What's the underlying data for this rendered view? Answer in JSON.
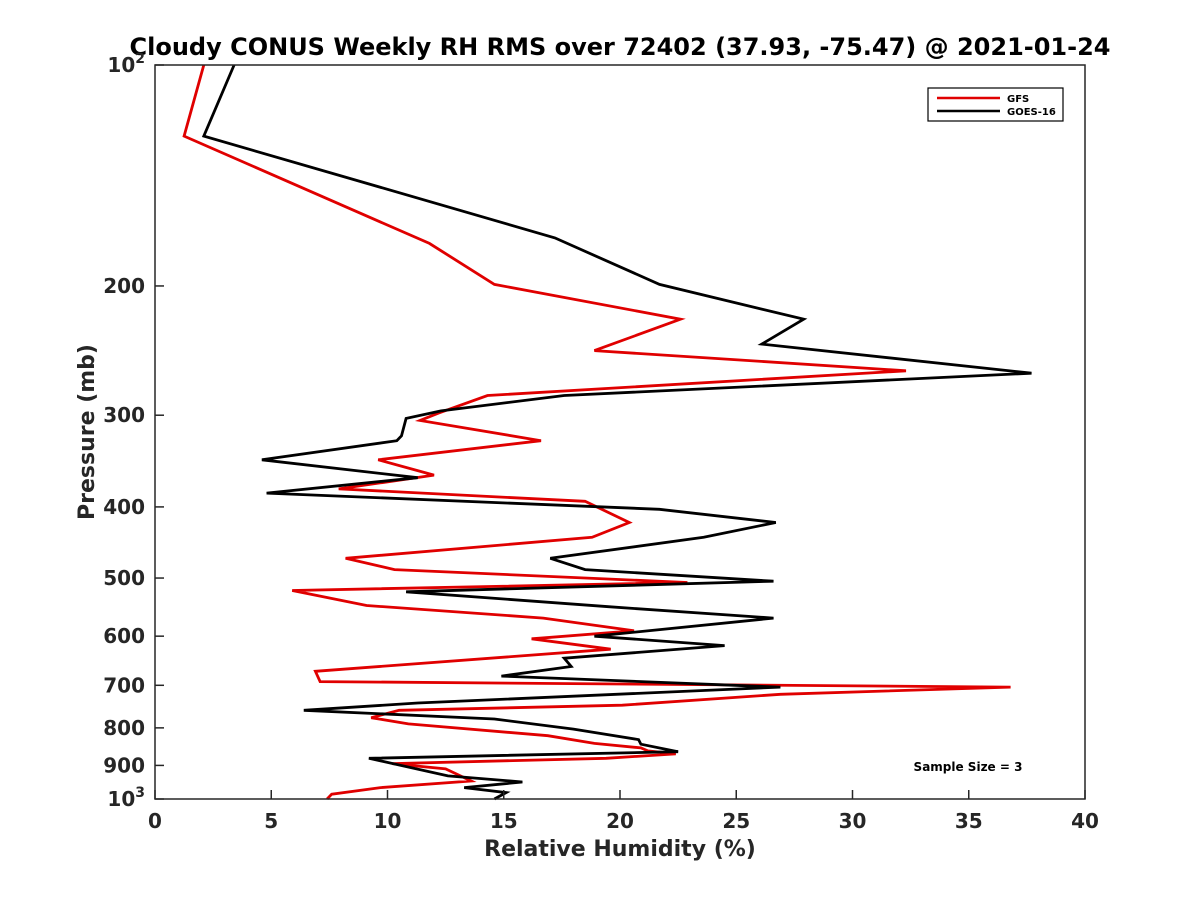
{
  "chart_data": {
    "type": "line",
    "title": "Cloudy CONUS Weekly RH RMS over 72402 (37.93, -75.47) @ 2021-01-24",
    "xlabel": "Relative Humidity (%)",
    "ylabel": "Pressure (mb)",
    "xlim": [
      0,
      40
    ],
    "ylim": [
      100,
      1000
    ],
    "y_scale": "log",
    "y_reversed": true,
    "x_ticks": [
      0,
      5,
      10,
      15,
      20,
      25,
      30,
      35,
      40
    ],
    "x_tick_labels": [
      "0",
      "5",
      "10",
      "15",
      "20",
      "25",
      "30",
      "35",
      "40"
    ],
    "y_ticks": [
      100,
      200,
      300,
      400,
      500,
      600,
      700,
      800,
      900,
      1000
    ],
    "y_tick_labels": [
      {
        "base": "10",
        "exp": "2"
      },
      {
        "base": "200",
        "exp": ""
      },
      {
        "base": "300",
        "exp": ""
      },
      {
        "base": "400",
        "exp": ""
      },
      {
        "base": "500",
        "exp": ""
      },
      {
        "base": "600",
        "exp": ""
      },
      {
        "base": "700",
        "exp": ""
      },
      {
        "base": "800",
        "exp": ""
      },
      {
        "base": "900",
        "exp": ""
      },
      {
        "base": "10",
        "exp": "3"
      }
    ],
    "grid": false,
    "legend_position": "top-right",
    "annotation": "Sample Size = 3",
    "series": [
      {
        "name": "GFS",
        "color": "#e00000",
        "points": [
          [
            2.1,
            100
          ],
          [
            1.25,
            125
          ],
          [
            11.8,
            175
          ],
          [
            14.6,
            199
          ],
          [
            22.6,
            222
          ],
          [
            18.9,
            245
          ],
          [
            32.3,
            261
          ],
          [
            14.3,
            282
          ],
          [
            12.2,
            298
          ],
          [
            11.4,
            305
          ],
          [
            16.6,
            325
          ],
          [
            9.6,
            345
          ],
          [
            12.0,
            362
          ],
          [
            7.9,
            378
          ],
          [
            18.5,
            393
          ],
          [
            20.4,
            420
          ],
          [
            18.8,
            440
          ],
          [
            8.2,
            470
          ],
          [
            10.3,
            487
          ],
          [
            22.9,
            507
          ],
          [
            5.9,
            520
          ],
          [
            9.1,
            545
          ],
          [
            16.7,
            567
          ],
          [
            20.6,
            590
          ],
          [
            16.2,
            605
          ],
          [
            19.6,
            625
          ],
          [
            6.9,
            670
          ],
          [
            7.1,
            692
          ],
          [
            36.8,
            704
          ],
          [
            26.9,
            720
          ],
          [
            20.1,
            745
          ],
          [
            10.5,
            757
          ],
          [
            9.3,
            775
          ],
          [
            10.9,
            790
          ],
          [
            16.9,
            820
          ],
          [
            18.9,
            840
          ],
          [
            20.9,
            852
          ],
          [
            21.2,
            860
          ],
          [
            22.4,
            868
          ],
          [
            19.4,
            880
          ],
          [
            10.2,
            895
          ],
          [
            12.5,
            910
          ],
          [
            13.6,
            945
          ],
          [
            9.7,
            965
          ],
          [
            7.6,
            985
          ],
          [
            7.4,
            1000
          ]
        ]
      },
      {
        "name": "GOES-16",
        "color": "#000000",
        "points": [
          [
            3.4,
            100
          ],
          [
            2.1,
            125
          ],
          [
            17.2,
            172
          ],
          [
            21.7,
            199
          ],
          [
            27.9,
            222
          ],
          [
            26.1,
            240
          ],
          [
            37.7,
            263
          ],
          [
            17.6,
            282
          ],
          [
            12.3,
            296
          ],
          [
            10.8,
            303
          ],
          [
            10.6,
            320
          ],
          [
            10.4,
            325
          ],
          [
            4.6,
            345
          ],
          [
            11.3,
            365
          ],
          [
            4.8,
            383
          ],
          [
            21.7,
            403
          ],
          [
            26.7,
            420
          ],
          [
            23.6,
            440
          ],
          [
            17.0,
            470
          ],
          [
            18.5,
            487
          ],
          [
            26.6,
            505
          ],
          [
            10.8,
            522
          ],
          [
            19.5,
            547
          ],
          [
            26.6,
            567
          ],
          [
            18.9,
            600
          ],
          [
            24.5,
            618
          ],
          [
            17.6,
            643
          ],
          [
            17.9,
            660
          ],
          [
            14.9,
            680
          ],
          [
            26.9,
            704
          ],
          [
            11.3,
            740
          ],
          [
            6.4,
            757
          ],
          [
            14.6,
            778
          ],
          [
            18.0,
            803
          ],
          [
            20.8,
            830
          ],
          [
            20.9,
            842
          ],
          [
            22.5,
            862
          ],
          [
            9.2,
            880
          ],
          [
            12.6,
            930
          ],
          [
            15.8,
            948
          ],
          [
            13.3,
            965
          ],
          [
            15.1,
            980
          ],
          [
            14.6,
            1000
          ]
        ]
      }
    ]
  }
}
